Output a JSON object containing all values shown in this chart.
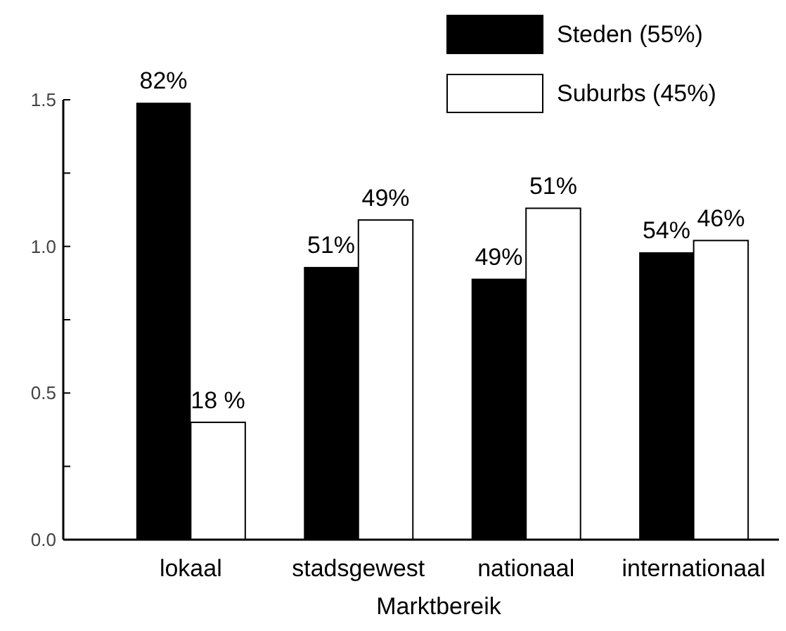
{
  "chart_data": {
    "type": "bar",
    "xlabel": "Marktbereik",
    "categories": [
      "lokaal",
      "stadsgewest",
      "nationaal",
      "internationaal"
    ],
    "series": [
      {
        "name": "Steden (55%)",
        "color": "#000000",
        "values": [
          1.49,
          0.93,
          0.89,
          0.98
        ]
      },
      {
        "name": "Suburbs (45%)",
        "color": "#ffffff",
        "values": [
          0.4,
          1.09,
          1.13,
          1.02
        ]
      }
    ],
    "annotations": [
      {
        "text": "82%",
        "x": "lokaal",
        "y": 1.49
      },
      {
        "text": "51%",
        "x": "stadsgewest",
        "y": 0.93
      },
      {
        "text": "49%",
        "x": "nationaal",
        "y": 0.89
      },
      {
        "text": "54%",
        "x": "internationaal",
        "y": 0.98
      },
      {
        "text": "18 %",
        "x": "lokaal",
        "y": 0.4
      },
      {
        "text": "49%",
        "x": "stadsgewest",
        "y": 1.09
      },
      {
        "text": "51%",
        "x": "nationaal",
        "y": 1.13
      },
      {
        "text": "46%",
        "x": "internationaal",
        "y": 1.02
      }
    ],
    "ylim": [
      0,
      1.5
    ],
    "yticks": [
      {
        "value": 0,
        "label": "0.0"
      },
      {
        "value": 0.25,
        "label": null
      },
      {
        "value": 0.5,
        "label": "0.5"
      },
      {
        "value": 0.75,
        "label": null
      },
      {
        "value": 1,
        "label": "1.0"
      },
      {
        "value": 1.25,
        "label": null
      },
      {
        "value": 1.5,
        "label": "1.5"
      }
    ],
    "grid": false,
    "legend": "top right"
  }
}
